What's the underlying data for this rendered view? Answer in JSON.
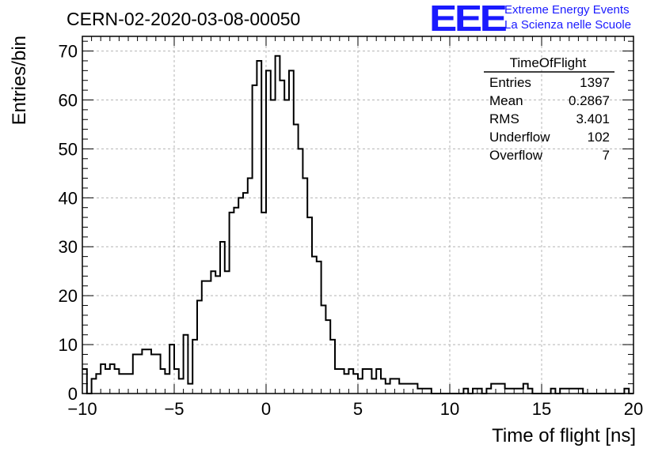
{
  "chart_data": {
    "type": "histogram",
    "title": "CERN-02-2020-03-08-00050",
    "xlabel": "Time of flight [ns]",
    "ylabel": "Entries/bin",
    "xlim": [
      -10,
      20
    ],
    "ylim": [
      0,
      73
    ],
    "bin_width": 0.25,
    "x_ticks": [
      -10,
      -5,
      0,
      5,
      10,
      15,
      20
    ],
    "x_tick_labels": [
      "−10",
      "−5",
      "0",
      "5",
      "10",
      "15",
      "20"
    ],
    "y_ticks": [
      0,
      10,
      20,
      30,
      40,
      50,
      60,
      70
    ],
    "grid": true,
    "counts": [
      5,
      0,
      3,
      4,
      6,
      5,
      6,
      5,
      4,
      4,
      4,
      8,
      8,
      9,
      9,
      8,
      8,
      5,
      4,
      10,
      5,
      3,
      12,
      2,
      11,
      19,
      23,
      23,
      25,
      24,
      31,
      25,
      37,
      38,
      40,
      41,
      44,
      63,
      68,
      37,
      66,
      60,
      69,
      64,
      60,
      66,
      55,
      50,
      44,
      36,
      28,
      27,
      18,
      15,
      11,
      5,
      5,
      4,
      5,
      4,
      3,
      5,
      5,
      3,
      5,
      3,
      2,
      3,
      3,
      2,
      2,
      2,
      2,
      1,
      1,
      1,
      0,
      0,
      0,
      0,
      0,
      0,
      0,
      1,
      0,
      1,
      1,
      0,
      1,
      2,
      2,
      2,
      1,
      1,
      1,
      1,
      2,
      1,
      0,
      0,
      0,
      0,
      1,
      0,
      1,
      1,
      1,
      1,
      1,
      0,
      0,
      0,
      0,
      0,
      0,
      0,
      0,
      0,
      1,
      0
    ],
    "stats": {
      "name": "TimeOfFlight",
      "rows": [
        {
          "label": "Entries",
          "value": "1397"
        },
        {
          "label": "Mean",
          "value": "0.2867"
        },
        {
          "label": "RMS",
          "value": "3.401"
        },
        {
          "label": "Underflow",
          "value": "102"
        },
        {
          "label": "Overflow",
          "value": "7"
        }
      ]
    }
  },
  "logo": {
    "mark": "EEE",
    "line1": "Extreme Energy Events",
    "line2": "La Scienza nelle Scuole"
  },
  "colors": {
    "logo": "#1a1aff",
    "line": "#000000",
    "grid": "#b4b4b4"
  }
}
